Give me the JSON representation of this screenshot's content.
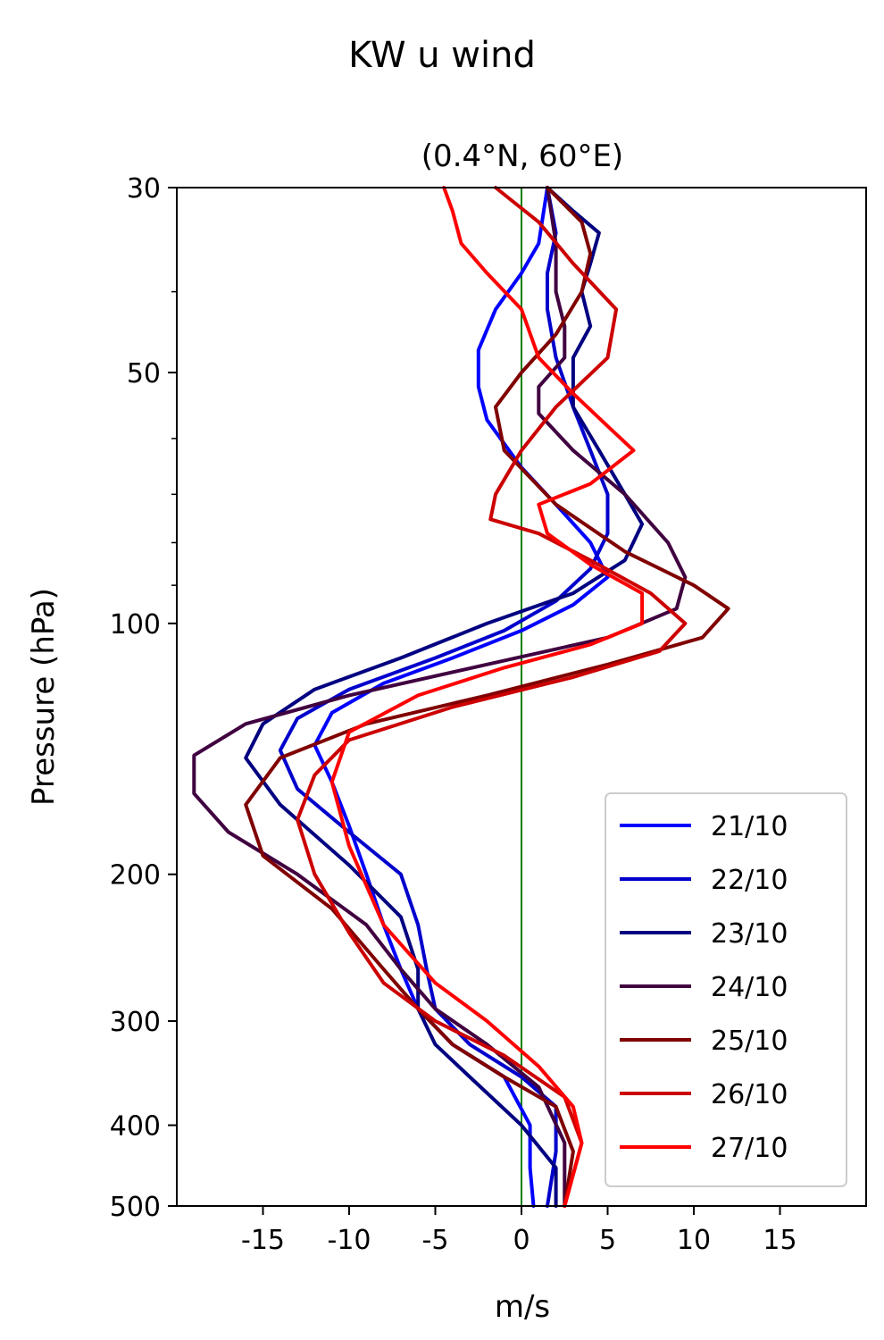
{
  "chart_data": {
    "type": "line",
    "suptitle": "KW u wind",
    "title": "(0.4°N, 60°E)",
    "xlabel": "m/s",
    "ylabel": "Pressure (hPa)",
    "xlim": [
      -20,
      20
    ],
    "ylim": [
      500,
      30
    ],
    "y_scale": "log",
    "x_ticks": [
      -15,
      -10,
      -5,
      0,
      5,
      10,
      15
    ],
    "x_tick_labels": [
      "-15",
      "-10",
      "-5",
      "0",
      "5",
      "10",
      "15"
    ],
    "y_ticks": [
      30,
      50,
      100,
      200,
      300,
      400,
      500
    ],
    "y_tick_labels": [
      "30",
      "50",
      "100",
      "200",
      "300",
      "400",
      "500"
    ],
    "y_minor_ticks": [
      40,
      60,
      70,
      80,
      90
    ],
    "zero_line": {
      "x": 0,
      "color": "#008000"
    },
    "legend": {
      "placement": "lower-right"
    },
    "series": [
      {
        "name": "21/10",
        "color": "#0000ff",
        "x": [
          1.5,
          1,
          0,
          -1.5,
          -2.5,
          -2.5,
          -2,
          0,
          2,
          4,
          5,
          3,
          0,
          -4,
          -8,
          -11,
          -12,
          -11,
          -10,
          -9,
          -8,
          -7,
          -6,
          -4,
          -1,
          0.5,
          0.5,
          0.7
        ],
        "y": [
          30,
          35,
          38,
          42,
          47,
          52,
          57,
          65,
          72,
          80,
          88,
          95,
          102,
          110,
          118,
          128,
          140,
          155,
          175,
          200,
          230,
          260,
          290,
          320,
          350,
          400,
          450,
          500
        ]
      },
      {
        "name": "22/10",
        "color": "#0000cc",
        "x": [
          1.5,
          2,
          1.5,
          1.5,
          2,
          3,
          4,
          5,
          5,
          4,
          2,
          -1,
          -5,
          -10,
          -13,
          -14,
          -13,
          -10,
          -7,
          -6,
          -5.5,
          -5,
          -3,
          0,
          2,
          2,
          1.5
        ],
        "y": [
          30,
          34,
          38,
          42,
          48,
          55,
          62,
          70,
          78,
          86,
          94,
          102,
          110,
          120,
          130,
          142,
          158,
          178,
          200,
          230,
          260,
          290,
          320,
          350,
          380,
          430,
          500
        ]
      },
      {
        "name": "23/10",
        "color": "#000080",
        "x": [
          1.5,
          3,
          4.5,
          4,
          3.5,
          4,
          3,
          3,
          4.5,
          6,
          7,
          6,
          3,
          -2,
          -7,
          -12,
          -15,
          -16,
          -14,
          -10,
          -7,
          -6,
          -6,
          -5,
          -3,
          0,
          2,
          2
        ],
        "y": [
          30,
          32,
          34,
          37,
          40,
          44,
          48,
          55,
          62,
          70,
          76,
          84,
          92,
          100,
          110,
          120,
          132,
          145,
          165,
          195,
          225,
          260,
          290,
          320,
          350,
          400,
          450,
          500
        ]
      },
      {
        "name": "24/10",
        "color": "#400040",
        "x": [
          1.5,
          2,
          2,
          2.5,
          2.5,
          1,
          1,
          3,
          6,
          8.5,
          9.5,
          9,
          5,
          -2,
          -10,
          -16,
          -19,
          -19,
          -17,
          -13,
          -9,
          -7,
          -5,
          -2,
          1,
          2.5,
          2.5
        ],
        "y": [
          30,
          35,
          40,
          44,
          48,
          52,
          56,
          62,
          70,
          80,
          88,
          96,
          104,
          112,
          122,
          132,
          144,
          160,
          178,
          200,
          230,
          260,
          290,
          320,
          360,
          420,
          500
        ]
      },
      {
        "name": "25/10",
        "color": "#800000",
        "x": [
          1.5,
          3.5,
          4,
          3.5,
          2,
          0,
          -1.5,
          -1,
          2,
          6,
          10,
          12,
          10.5,
          5,
          -2,
          -9,
          -14,
          -16,
          -15,
          -11,
          -8,
          -6,
          -4,
          -1,
          2,
          3,
          2.5
        ],
        "y": [
          30,
          33,
          36,
          40,
          45,
          50,
          55,
          62,
          72,
          82,
          90,
          96,
          104,
          112,
          122,
          132,
          145,
          165,
          190,
          220,
          260,
          290,
          320,
          350,
          380,
          430,
          500
        ]
      },
      {
        "name": "26/10",
        "color": "#cc0000",
        "x": [
          -1.5,
          1,
          3,
          5.5,
          5,
          2,
          0,
          -1.5,
          -1.8,
          1,
          4,
          7.5,
          9.5,
          8,
          3,
          -4,
          -10,
          -12,
          -13,
          -12,
          -10,
          -8,
          -5,
          -1,
          2.5,
          3.5,
          2.5
        ],
        "y": [
          30,
          33,
          37,
          42,
          48,
          55,
          62,
          70,
          75,
          78,
          84,
          92,
          100,
          108,
          116,
          126,
          138,
          152,
          172,
          200,
          235,
          270,
          300,
          330,
          370,
          420,
          500
        ]
      },
      {
        "name": "27/10",
        "color": "#ff0000",
        "x": [
          -4.5,
          -4,
          -3.5,
          -2,
          0,
          1,
          3,
          5,
          6.5,
          4,
          1,
          1.5,
          4,
          7,
          7,
          4,
          -1,
          -6,
          -10,
          -11,
          -10,
          -8,
          -5,
          -2,
          1,
          3,
          3.5,
          2.5
        ],
        "y": [
          30,
          32,
          35,
          38,
          42,
          48,
          53,
          58,
          62,
          68,
          72,
          78,
          85,
          92,
          100,
          106,
          113,
          122,
          135,
          155,
          185,
          230,
          270,
          300,
          340,
          380,
          420,
          500
        ]
      }
    ]
  }
}
